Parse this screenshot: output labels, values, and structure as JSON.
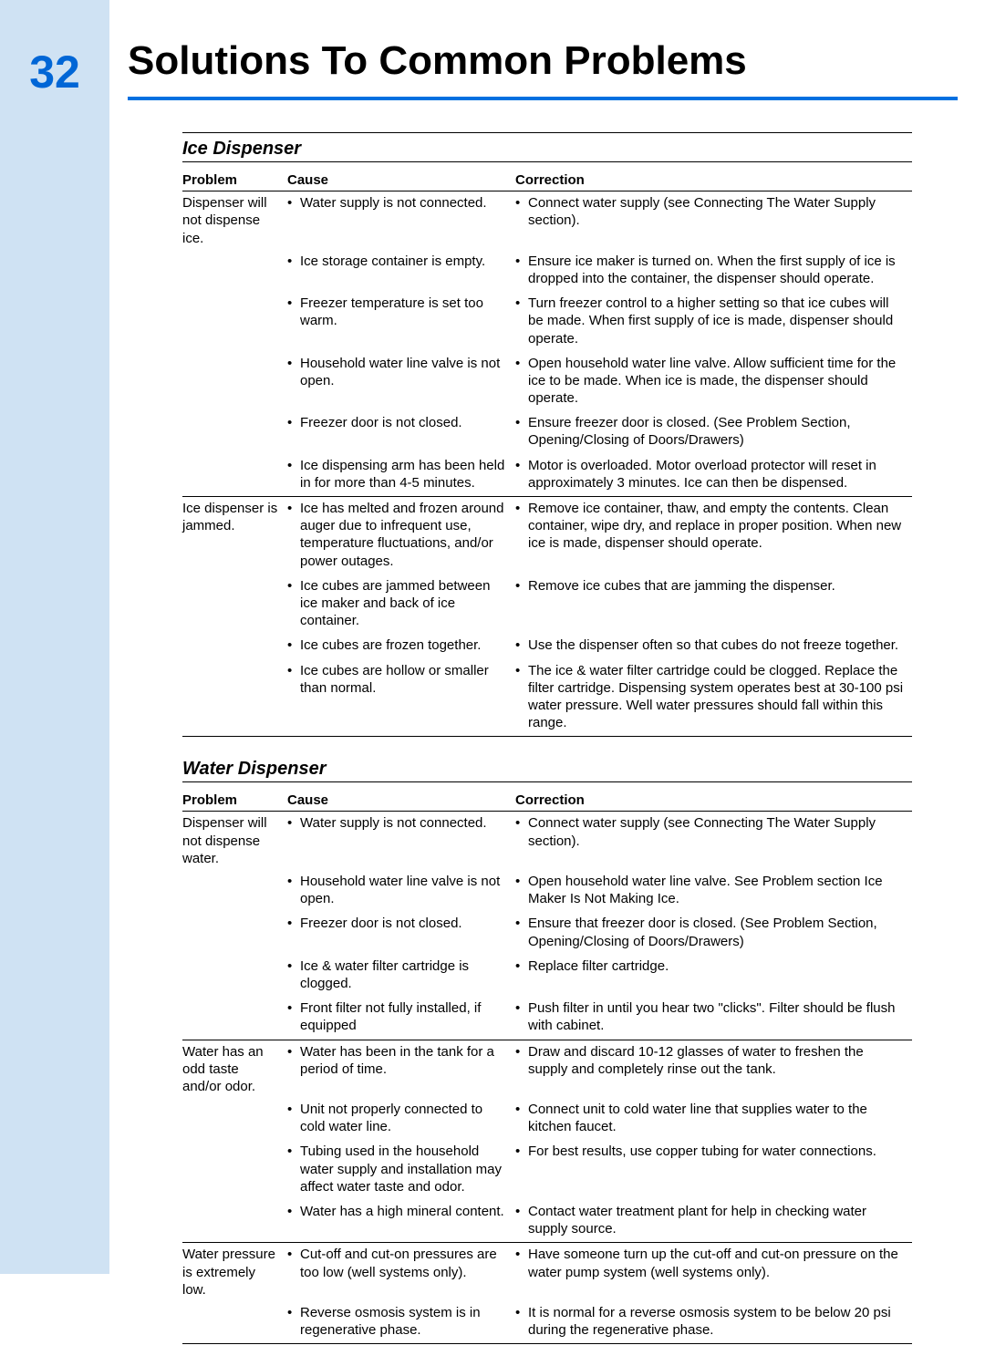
{
  "page_number": "32",
  "page_title": "Solutions To Common Problems",
  "colors": {
    "accent_blue": "#0070e0",
    "side_band": "#cfe2f3",
    "text": "#000000",
    "bg": "#ffffff"
  },
  "headers": {
    "problem": "Problem",
    "cause": "Cause",
    "correction": "Correction"
  },
  "sections": [
    {
      "title": "Ice Dispenser",
      "problems": [
        {
          "problem": "Dispenser will not dispense ice.",
          "pairs": [
            {
              "cause": "Water supply is not connected.",
              "correction": "Connect water supply (see Connecting The Water Supply section)."
            },
            {
              "cause": "Ice storage container is empty.",
              "correction": "Ensure ice maker is turned on. When the first supply of ice is dropped into the container, the dispenser should operate."
            },
            {
              "cause": "Freezer temperature is set too warm.",
              "correction": "Turn freezer control to a higher setting so that ice cubes will be made. When first supply of ice is made, dispenser should operate."
            },
            {
              "cause": "Household water line valve is not open.",
              "correction": "Open household water line valve. Allow sufficient time for the ice to be made. When ice is made, the dispenser should operate."
            },
            {
              "cause": "Freezer door is not closed.",
              "correction": "Ensure freezer door is closed.  (See Problem Section, Opening/Closing of Doors/Drawers)"
            },
            {
              "cause": "Ice dispensing arm has been held in for more than 4-5 minutes.",
              "correction": "Motor is overloaded. Motor overload protector will reset in approximately 3 minutes. Ice can then be dispensed."
            }
          ]
        },
        {
          "problem": "Ice dispenser is jammed.",
          "pairs": [
            {
              "cause": "Ice has melted and frozen around auger due to infrequent use, temperature fluctuations, and/or power outages.",
              "correction": "Remove ice container, thaw, and empty the contents. Clean container, wipe dry, and replace in proper position. When new ice is made, dispenser should operate."
            },
            {
              "cause": "Ice cubes are jammed between ice maker and back of ice container.",
              "correction": "Remove ice cubes that are jamming the dispenser."
            },
            {
              "cause": "Ice cubes are frozen together.",
              "correction": "Use the dispenser often so that cubes do not freeze together."
            },
            {
              "cause": "Ice cubes are hollow or smaller than normal.",
              "correction": "The ice & water filter cartridge could be clogged. Replace the filter cartridge. Dispensing system operates best at 30-100 psi water pressure. Well water pressures should fall within this range."
            }
          ]
        }
      ]
    },
    {
      "title": "Water Dispenser",
      "problems": [
        {
          "problem": "Dispenser will not dispense water.",
          "pairs": [
            {
              "cause": "Water supply is not connected.",
              "correction": "Connect water supply (see Connecting The Water Supply section)."
            },
            {
              "cause": "Household water line valve is not open.",
              "correction": "Open household water line valve. See Problem section Ice Maker Is Not Making Ice."
            },
            {
              "cause": "Freezer door is not closed.",
              "correction": "Ensure that freezer door is closed. (See Problem Section, Opening/Closing of Doors/Drawers)"
            },
            {
              "cause": "Ice & water filter cartridge is clogged.",
              "correction": "Replace filter cartridge."
            },
            {
              "cause": "Front filter not fully installed, if equipped",
              "correction": "Push filter in until you hear two \"clicks\". Filter should be flush with cabinet."
            }
          ]
        },
        {
          "problem": "Water has an odd taste and/or odor.",
          "pairs": [
            {
              "cause": "Water has been in the tank for a period of time.",
              "correction": "Draw and discard 10-12 glasses of water to freshen the supply and completely rinse out the tank."
            },
            {
              "cause": "Unit not properly connected to cold water line.",
              "correction": "Connect unit to cold water line that supplies water to the kitchen faucet."
            },
            {
              "cause": "Tubing used in the household water supply and installation may affect water taste and odor.",
              "correction": "For best results, use copper tubing for water connections."
            },
            {
              "cause": "Water has a high mineral content.",
              "correction": "Contact water treatment plant for help in checking water supply source."
            }
          ]
        },
        {
          "problem": "Water pressure is extremely low.",
          "pairs": [
            {
              "cause": "Cut-off and cut-on pressures are too low (well systems only).",
              "correction": "Have someone turn up the cut-off and cut-on pressure on the water pump system (well systems only)."
            },
            {
              "cause": "Reverse osmosis system is in regenerative phase.",
              "correction": "It is normal for a reverse osmosis system to be below 20 psi during the regenerative phase."
            }
          ]
        }
      ]
    }
  ]
}
